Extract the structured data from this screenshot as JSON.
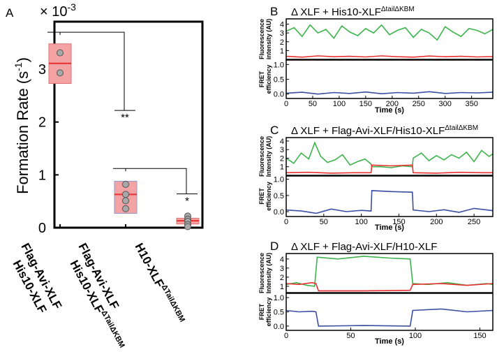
{
  "colors": {
    "green": "#3cb44b",
    "red": "#e8312f",
    "blue": "#3a4ea3",
    "box_fill": "#f3a3a3",
    "box_edge": "#e07070",
    "box_fill_blue_edge": "#8a9bd6",
    "point_fill": "#a8a8a8",
    "axis": "#000000"
  },
  "chart_data": [
    {
      "panel_label": "A",
      "type": "box",
      "ylabel": "Formation Rate (s⁻¹)",
      "y_multiplier": "× 10⁻³",
      "ylim": [
        0,
        0.0039
      ],
      "yticks": [
        0,
        0.001,
        0.002,
        0.003
      ],
      "ytick_labels": [
        "0",
        "1",
        "2",
        "3"
      ],
      "categories": [
        {
          "lines": [
            "Flag-Avi-XLF",
            "His10-XLF"
          ],
          "superscript": "",
          "box": {
            "q1": 0.00273,
            "median": 0.00311,
            "q3": 0.00348
          },
          "points": [
            0.00331,
            0.00293
          ]
        },
        {
          "lines": [
            "Flag-Avi-XLF",
            "His10-XLF"
          ],
          "superscript": "ΔTailΔKBM",
          "box": {
            "q1": 0.00027,
            "median": 0.00063,
            "q3": 0.00088
          },
          "points": [
            0.00082,
            0.00063,
            0.00051,
            0.00036
          ]
        },
        {
          "lines": [
            "H10-XLF"
          ],
          "superscript": "ΔTailΔKBM",
          "box": {
            "q1": 7e-05,
            "median": 0.00013,
            "q3": 0.00018
          },
          "points": [
            0.00022,
            0.00016,
            0.00012,
            6e-05,
            2e-05
          ]
        }
      ],
      "significance": [
        {
          "pair": [
            1,
            2
          ],
          "label": "**"
        },
        {
          "pair": [
            2,
            3
          ],
          "label": "*"
        }
      ]
    },
    {
      "panel_label": "B",
      "type": "line",
      "title": "Δ XLF + His10-XLF",
      "title_superscript": "ΔtailΔKBM",
      "xlabel": "Time (s)",
      "xlim": [
        0,
        390
      ],
      "xticks": [
        0,
        50,
        100,
        150,
        200,
        250,
        300,
        350
      ],
      "top": {
        "ylabel": [
          "Fluorescence",
          "intensity (AU)"
        ],
        "ylim": [
          0,
          4.6
        ],
        "yticks": [
          1,
          2,
          3,
          4
        ],
        "series": [
          {
            "color_key": "green",
            "x": [
              0,
              15,
              30,
              45,
              60,
              75,
              90,
              105,
              120,
              135,
              150,
              165,
              180,
              195,
              210,
              225,
              240,
              255,
              270,
              285,
              300,
              315,
              330,
              345,
              360,
              375,
              390
            ],
            "y": [
              3.2,
              3.6,
              2.6,
              3.9,
              3.0,
              3.4,
              2.4,
              3.8,
              3.1,
              2.7,
              3.5,
              3.0,
              3.9,
              2.8,
              3.3,
              3.6,
              2.5,
              3.4,
              3.0,
              2.2,
              3.7,
              3.1,
              2.6,
              3.5,
              3.3,
              2.9,
              3.4
            ]
          },
          {
            "color_key": "red",
            "x": [
              0,
              30,
              60,
              90,
              120,
              150,
              180,
              210,
              240,
              270,
              300,
              330,
              360,
              390
            ],
            "y": [
              0.35,
              0.25,
              0.4,
              0.3,
              0.35,
              0.28,
              0.4,
              0.3,
              0.25,
              0.38,
              0.3,
              0.35,
              0.28,
              0.32
            ]
          }
        ]
      },
      "bottom": {
        "ylabel": [
          "FRET",
          "efficiency"
        ],
        "ylim": [
          -0.15,
          1.15
        ],
        "yticks": [
          0.0,
          0.5,
          1.0
        ],
        "series": [
          {
            "color_key": "blue",
            "x": [
              0,
              30,
              60,
              90,
              120,
              150,
              180,
              210,
              240,
              270,
              300,
              330,
              360,
              390
            ],
            "y": [
              0.03,
              0.06,
              0.0,
              0.05,
              0.02,
              0.07,
              0.01,
              0.05,
              0.03,
              0.08,
              0.02,
              0.05,
              0.04,
              0.06
            ]
          }
        ]
      }
    },
    {
      "panel_label": "C",
      "type": "line",
      "title": "Δ XLF + Flag-Avi-XLF/His10-XLF",
      "title_superscript": "ΔtailΔKBM",
      "xlabel": "Time (s)",
      "xlim": [
        0,
        275
      ],
      "xticks": [
        0,
        50,
        100,
        150,
        200,
        250
      ],
      "top": {
        "ylabel": [
          "Fluorescence",
          "Intensity (AU)"
        ],
        "ylim": [
          0,
          4.4
        ],
        "yticks": [
          1,
          2,
          3,
          4
        ],
        "series": [
          {
            "color_key": "green",
            "x": [
              0,
              10,
              20,
              30,
              38,
              46,
              55,
              65,
              75,
              85,
              95,
              105,
              113,
              114,
              125,
              140,
              155,
              168,
              169,
              180,
              190,
              200,
              210,
              220,
              230,
              240,
              250,
              260,
              270,
              275
            ],
            "y": [
              2.0,
              1.4,
              2.6,
              1.9,
              3.8,
              2.2,
              1.5,
              1.8,
              2.4,
              1.2,
              1.6,
              1.9,
              1.3,
              1.0,
              1.0,
              0.9,
              1.1,
              1.0,
              2.0,
              2.6,
              1.7,
              2.3,
              1.8,
              2.4,
              2.0,
              2.7,
              1.6,
              2.9,
              2.2,
              2.5
            ]
          },
          {
            "color_key": "red",
            "x": [
              0,
              30,
              60,
              90,
              113,
              114,
              140,
              168,
              169,
              200,
              230,
              260,
              275
            ],
            "y": [
              0.3,
              0.35,
              0.25,
              0.3,
              0.3,
              1.2,
              1.1,
              1.2,
              0.3,
              0.25,
              0.35,
              0.3,
              0.3
            ]
          }
        ]
      },
      "bottom": {
        "ylabel": [
          "FRET",
          "efficiency"
        ],
        "ylim": [
          -0.15,
          1.1
        ],
        "yticks": [
          0.0,
          0.5,
          1.0
        ],
        "series": [
          {
            "color_key": "blue",
            "x": [
              0,
              20,
              40,
              60,
              80,
              100,
              113,
              114,
              140,
              168,
              169,
              190,
              210,
              230,
              250,
              275
            ],
            "y": [
              0.05,
              0.02,
              -0.05,
              0.08,
              0.0,
              0.04,
              0.02,
              0.65,
              0.62,
              0.6,
              0.05,
              0.0,
              0.06,
              -0.02,
              0.1,
              0.03
            ]
          }
        ]
      }
    },
    {
      "panel_label": "D",
      "type": "line",
      "title": "Δ XLF + Flag-Avi-XLF/H10-XLF",
      "title_superscript": "",
      "xlabel": "Time (s)",
      "xlim": [
        0,
        160
      ],
      "xticks": [
        0,
        50,
        100,
        150
      ],
      "top": {
        "ylabel": [
          "Fluorescence",
          "Intensity (AU)"
        ],
        "ylim": [
          0.3,
          4.6
        ],
        "yticks": [
          1,
          2,
          3,
          4
        ],
        "series": [
          {
            "color_key": "green",
            "x": [
              0,
              8,
              16,
              22,
              24,
              40,
              60,
              80,
              96,
              98,
              110,
              125,
              140,
              155,
              160
            ],
            "y": [
              1.2,
              1.4,
              1.1,
              1.0,
              4.2,
              4.0,
              4.3,
              4.1,
              4.0,
              1.3,
              1.2,
              1.4,
              1.1,
              1.3,
              1.2
            ]
          },
          {
            "color_key": "red",
            "x": [
              0,
              10,
              20,
              23,
              25,
              60,
              96,
              98,
              120,
              140,
              160
            ],
            "y": [
              1.3,
              1.2,
              1.4,
              1.3,
              0.5,
              0.5,
              0.55,
              1.2,
              1.3,
              1.1,
              1.3
            ]
          }
        ]
      },
      "bottom": {
        "ylabel": [
          "FRET",
          "efficiency"
        ],
        "ylim": [
          -0.15,
          1.15
        ],
        "yticks": [
          0.0,
          0.5,
          1.0
        ],
        "series": [
          {
            "color_key": "blue",
            "x": [
              0,
              10,
              20,
              23,
              25,
              60,
              96,
              98,
              120,
              140,
              160
            ],
            "y": [
              0.55,
              0.5,
              0.52,
              0.5,
              0.0,
              0.02,
              0.0,
              0.55,
              0.6,
              0.5,
              0.55
            ]
          }
        ]
      }
    }
  ]
}
